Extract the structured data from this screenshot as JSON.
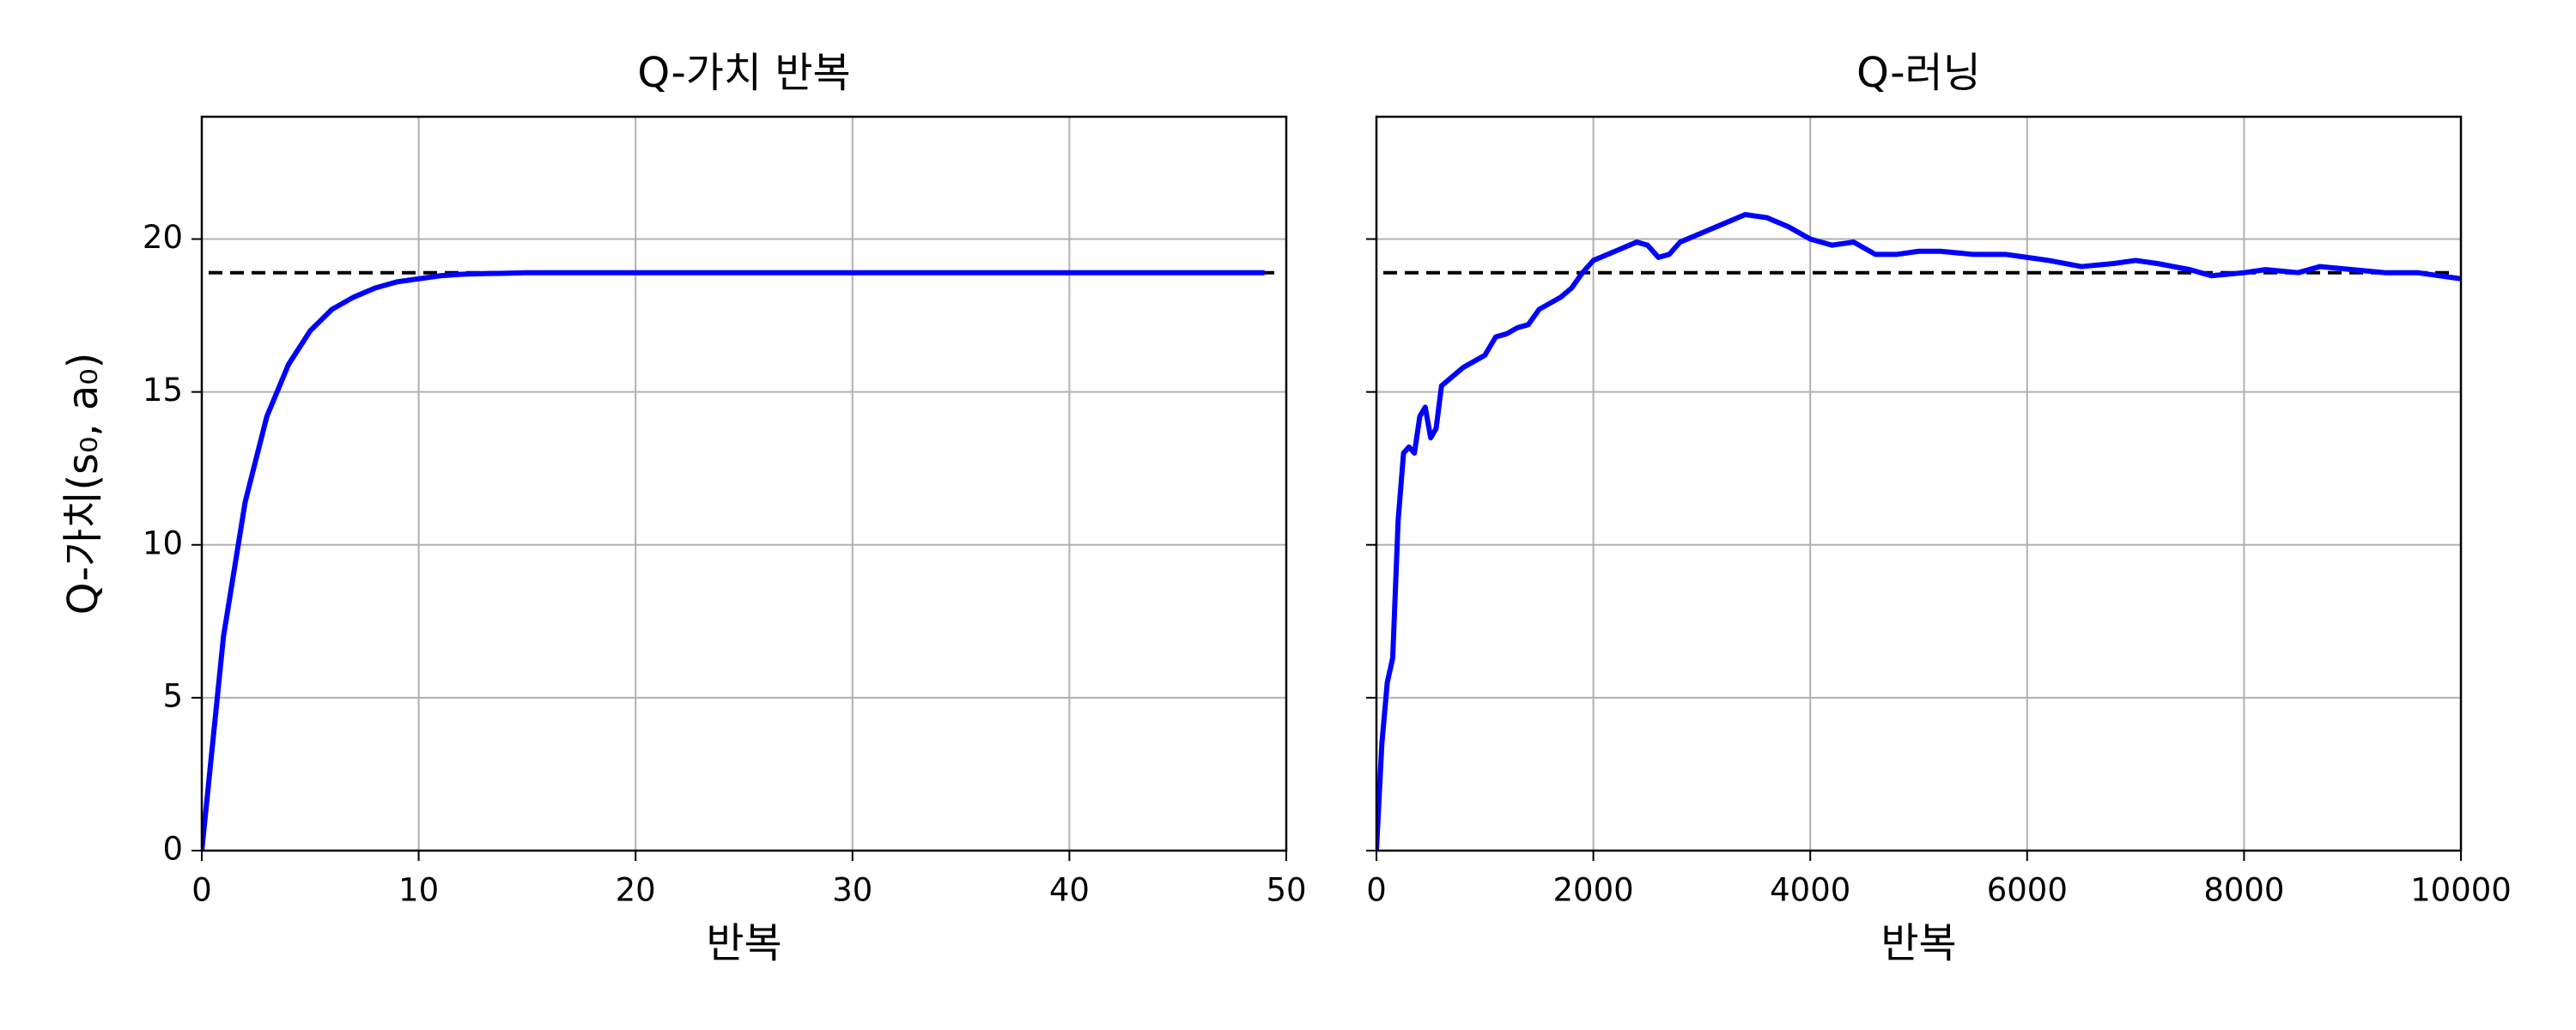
{
  "chart_data": [
    {
      "type": "line",
      "title": "Q-가치 반복",
      "xlabel": "반복",
      "ylabel": "Q-가치(s₀, a₀)",
      "x": [
        0,
        1,
        2,
        3,
        4,
        5,
        6,
        7,
        8,
        9,
        10,
        11,
        12,
        13,
        14,
        15,
        16,
        17,
        18,
        19,
        20,
        21,
        22,
        23,
        24,
        25,
        26,
        27,
        28,
        29,
        30,
        31,
        32,
        33,
        34,
        35,
        36,
        37,
        38,
        39,
        40,
        41,
        42,
        43,
        44,
        45,
        46,
        47,
        48,
        49
      ],
      "series": [
        {
          "color": "#0000ff",
          "values": [
            0,
            7.0,
            11.4,
            14.2,
            15.9,
            17.0,
            17.7,
            18.1,
            18.4,
            18.6,
            18.7,
            18.8,
            18.85,
            18.87,
            18.88,
            18.9,
            18.9,
            18.9,
            18.9,
            18.9,
            18.9,
            18.9,
            18.9,
            18.9,
            18.9,
            18.9,
            18.9,
            18.9,
            18.9,
            18.9,
            18.9,
            18.9,
            18.9,
            18.9,
            18.9,
            18.9,
            18.9,
            18.9,
            18.9,
            18.9,
            18.9,
            18.9,
            18.9,
            18.9,
            18.9,
            18.9,
            18.9,
            18.9,
            18.9,
            18.9
          ]
        }
      ],
      "hline": {
        "value": 18.9,
        "color": "#000000",
        "style": "dashed"
      },
      "xlim": [
        0,
        50
      ],
      "xticks": [
        0,
        10,
        20,
        30,
        40,
        50
      ],
      "ylim": [
        0,
        24
      ],
      "yticks": [
        0,
        5,
        10,
        15,
        20
      ],
      "show_ytick_labels": true,
      "grid": true
    },
    {
      "type": "line",
      "title": "Q-러닝",
      "xlabel": "반복",
      "x": [
        0,
        50,
        100,
        150,
        200,
        250,
        300,
        350,
        400,
        450,
        500,
        550,
        600,
        700,
        800,
        1000,
        1100,
        1200,
        1300,
        1400,
        1500,
        1700,
        1800,
        1900,
        2000,
        2200,
        2400,
        2500,
        2600,
        2700,
        2800,
        3000,
        3200,
        3400,
        3600,
        3800,
        4000,
        4200,
        4400,
        4600,
        4800,
        5000,
        5200,
        5500,
        5800,
        6000,
        6200,
        6500,
        6800,
        7000,
        7200,
        7500,
        7700,
        8000,
        8200,
        8500,
        8700,
        9000,
        9300,
        9600,
        10000
      ],
      "series": [
        {
          "color": "#0000ff",
          "values": [
            0,
            3.5,
            5.5,
            6.3,
            10.8,
            13.0,
            13.2,
            13.0,
            14.2,
            14.5,
            13.5,
            13.8,
            15.2,
            15.5,
            15.8,
            16.2,
            16.8,
            16.9,
            17.1,
            17.2,
            17.7,
            18.1,
            18.4,
            18.9,
            19.3,
            19.6,
            19.9,
            19.8,
            19.4,
            19.5,
            19.9,
            20.2,
            20.5,
            20.8,
            20.7,
            20.4,
            20.0,
            19.8,
            19.9,
            19.5,
            19.5,
            19.6,
            19.6,
            19.5,
            19.5,
            19.4,
            19.3,
            19.1,
            19.2,
            19.3,
            19.2,
            19.0,
            18.8,
            18.9,
            19.0,
            18.9,
            19.1,
            19.0,
            18.9,
            18.9,
            18.7
          ]
        }
      ],
      "hline": {
        "value": 18.9,
        "color": "#000000",
        "style": "dashed"
      },
      "xlim": [
        0,
        10000
      ],
      "xticks": [
        0,
        2000,
        4000,
        6000,
        8000,
        10000
      ],
      "ylim": [
        0,
        24
      ],
      "yticks": [
        0,
        5,
        10,
        15,
        20
      ],
      "show_ytick_labels": false,
      "grid": true
    }
  ]
}
